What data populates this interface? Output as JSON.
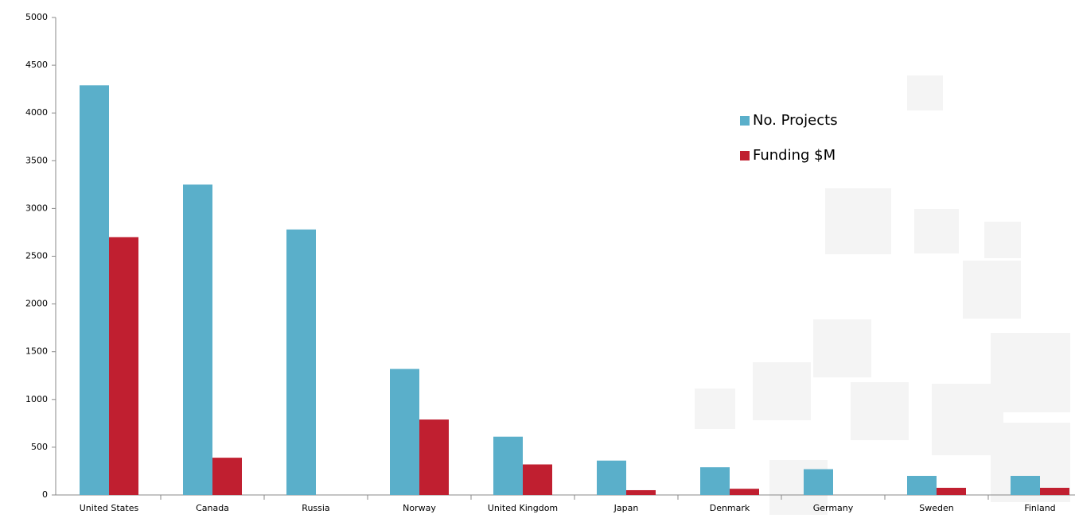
{
  "chart_data": {
    "type": "bar",
    "categories": [
      "United States",
      "Canada",
      "Russia",
      "Norway",
      "United Kingdom",
      "Japan",
      "Denmark",
      "Germany",
      "Sweden",
      "Finland"
    ],
    "series": [
      {
        "name": "No. Projects",
        "color": "#5aafca",
        "values": [
          4290,
          3250,
          2780,
          1320,
          610,
          360,
          290,
          270,
          200,
          200
        ]
      },
      {
        "name": "Funding $M",
        "color": "#c01f30",
        "values": [
          2700,
          390,
          0,
          790,
          320,
          50,
          65,
          0,
          75,
          75
        ]
      }
    ],
    "ylim": [
      0,
      5000
    ],
    "yticks": [
      0,
      500,
      1000,
      1500,
      2000,
      2500,
      3000,
      3500,
      4000,
      4500,
      5000
    ]
  }
}
